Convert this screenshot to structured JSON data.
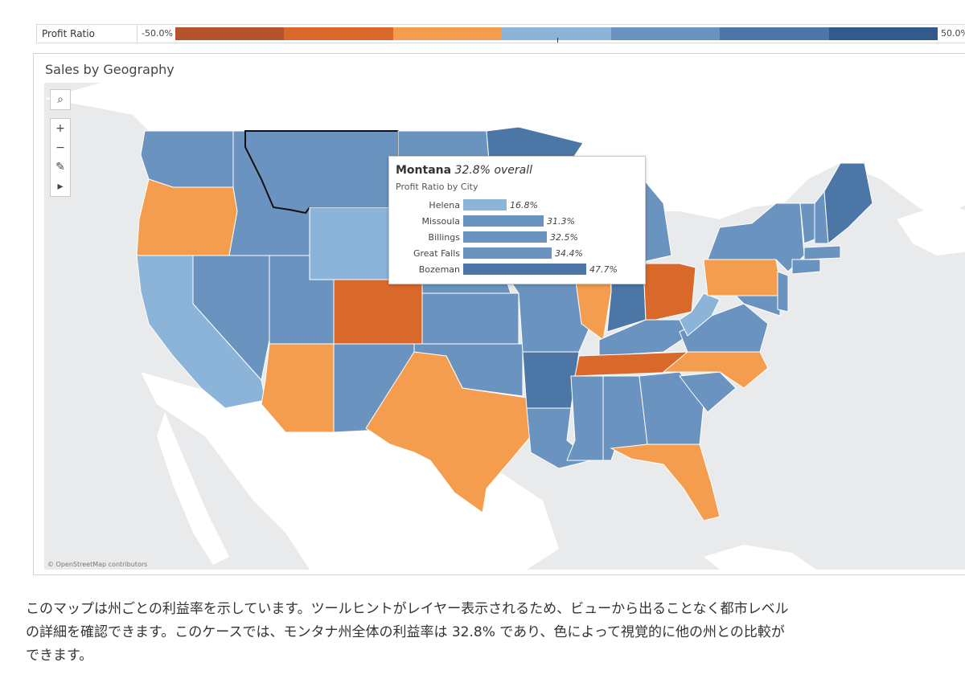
{
  "legend": {
    "title": "Profit Ratio",
    "min_label": "-50.0%",
    "max_label": "50.0%",
    "colors": [
      "#b5532a",
      "#d9692b",
      "#f59d4f",
      "#8cb4d9",
      "#6a94bf",
      "#4c76a6",
      "#325a8c"
    ]
  },
  "panel": {
    "title": "Sales by Geography"
  },
  "map": {
    "attribution": "© OpenStreetMap contributors",
    "tools": [
      {
        "name": "search-icon",
        "glyph": "⌕"
      },
      {
        "name": "zoom-in-icon",
        "glyph": "+"
      },
      {
        "name": "zoom-out-icon",
        "glyph": "−"
      },
      {
        "name": "pin-icon",
        "glyph": "✎"
      },
      {
        "name": "expand-arrow-icon",
        "glyph": "▸"
      }
    ],
    "colors": {
      "water": "#e9eaeb",
      "land": "#ffffff",
      "orange": "#f59d4f",
      "dark_orange": "#d9692b",
      "light_blue": "#8cb4d9",
      "mid_blue": "#6a94bf",
      "dark_blue": "#4c76a6"
    }
  },
  "tooltip": {
    "state": "Montana",
    "overall": "32.8% overall",
    "subtitle": "Profit Ratio by City",
    "cities": [
      {
        "city": "Helena",
        "value": 16.8,
        "label": "16.8%",
        "color": "#8cb4d9"
      },
      {
        "city": "Missoula",
        "value": 31.3,
        "label": "31.3%",
        "color": "#6a94bf"
      },
      {
        "city": "Billings",
        "value": 32.5,
        "label": "32.5%",
        "color": "#6a94bf"
      },
      {
        "city": "Great Falls",
        "value": 34.4,
        "label": "34.4%",
        "color": "#6a94bf"
      },
      {
        "city": "Bozeman",
        "value": 47.7,
        "label": "47.7%",
        "color": "#4c76a6"
      }
    ]
  },
  "caption": {
    "line1": "このマップは州ごとの利益率を示しています。ツールヒントがレイヤー表示されるため、ビューから出ることなく都市レベル",
    "line2": "の詳細を確認できます。このケースでは、モンタナ州全体の利益率は 32.8% であり、色によって視覚的に他の州との比較が",
    "line3": "できます。"
  }
}
